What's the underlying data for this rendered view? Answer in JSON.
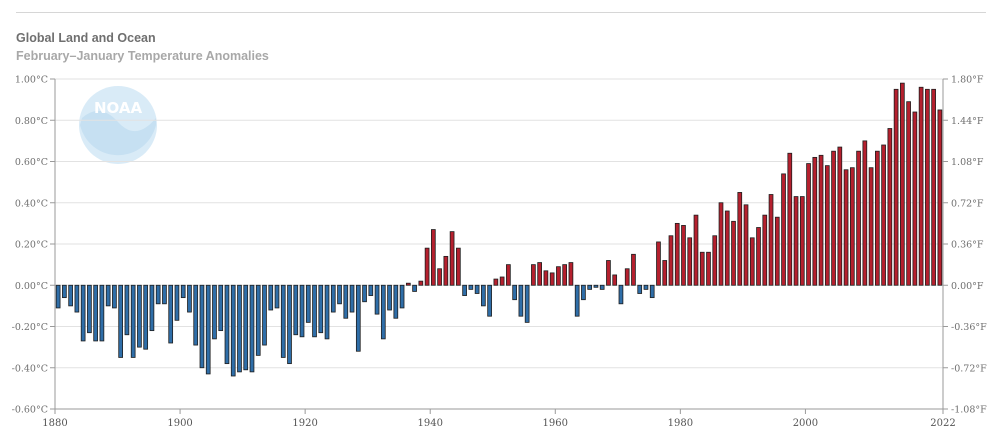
{
  "header": {
    "title": "Global Land and Ocean",
    "subtitle": "February–January Temperature Anomalies"
  },
  "logo": {
    "text": "NOAA"
  },
  "colors": {
    "positive": "#b5202e",
    "negative": "#2f6ea8",
    "bar_stroke": "#1e1e1e",
    "grid": "#e2e2e2",
    "axis": "#9a9a9a"
  },
  "chart_data": {
    "type": "bar",
    "title": "Global Land and Ocean",
    "subtitle": "February–January Temperature Anomalies",
    "xlabel": "",
    "ylabel": "",
    "ylim": [
      -0.6,
      1.0
    ],
    "y2lim": [
      -1.08,
      1.8
    ],
    "grid": true,
    "yticks_left": [
      "-0.60°C",
      "-0.40°C",
      "-0.20°C",
      "0.00°C",
      "0.20°C",
      "0.40°C",
      "0.60°C",
      "0.80°C",
      "1.00°C"
    ],
    "yticks_right": [
      "-1.08°F",
      "-0.72°F",
      "-0.36°F",
      "0.00°F",
      "0.36°F",
      "0.72°F",
      "1.08°F",
      "1.44°F",
      "1.80°F"
    ],
    "xticks": [
      "1880",
      "1900",
      "1920",
      "1940",
      "1960",
      "1980",
      "2000",
      "2022"
    ],
    "year_start": 1881,
    "year_end": 2022,
    "values": [
      -0.11,
      -0.06,
      -0.1,
      -0.13,
      -0.27,
      -0.23,
      -0.27,
      -0.27,
      -0.1,
      -0.11,
      -0.35,
      -0.24,
      -0.35,
      -0.3,
      -0.31,
      -0.22,
      -0.09,
      -0.09,
      -0.28,
      -0.17,
      -0.06,
      -0.13,
      -0.29,
      -0.4,
      -0.43,
      -0.26,
      -0.22,
      -0.38,
      -0.44,
      -0.42,
      -0.41,
      -0.42,
      -0.34,
      -0.29,
      -0.12,
      -0.11,
      -0.35,
      -0.38,
      -0.24,
      -0.25,
      -0.18,
      -0.25,
      -0.23,
      -0.26,
      -0.13,
      -0.09,
      -0.16,
      -0.13,
      -0.32,
      -0.08,
      -0.05,
      -0.14,
      -0.26,
      -0.12,
      -0.16,
      -0.11,
      0.01,
      -0.03,
      0.02,
      0.18,
      0.27,
      0.08,
      0.14,
      0.26,
      0.18,
      -0.05,
      -0.02,
      -0.04,
      -0.1,
      -0.15,
      0.03,
      0.04,
      0.1,
      -0.07,
      -0.15,
      -0.18,
      0.1,
      0.11,
      0.07,
      0.06,
      0.09,
      0.1,
      0.11,
      -0.15,
      -0.07,
      -0.02,
      -0.01,
      -0.02,
      0.12,
      0.05,
      -0.09,
      0.08,
      0.15,
      -0.04,
      -0.02,
      -0.06,
      0.21,
      0.12,
      0.24,
      0.3,
      0.29,
      0.23,
      0.34,
      0.16,
      0.16,
      0.24,
      0.4,
      0.36,
      0.31,
      0.45,
      0.39,
      0.23,
      0.28,
      0.34,
      0.44,
      0.33,
      0.54,
      0.64,
      0.43,
      0.43,
      0.59,
      0.62,
      0.63,
      0.58,
      0.65,
      0.67,
      0.56,
      0.57,
      0.65,
      0.7,
      0.57,
      0.65,
      0.68,
      0.76,
      0.95,
      0.98,
      0.89,
      0.84,
      0.96,
      0.95,
      0.95,
      0.85
    ]
  }
}
